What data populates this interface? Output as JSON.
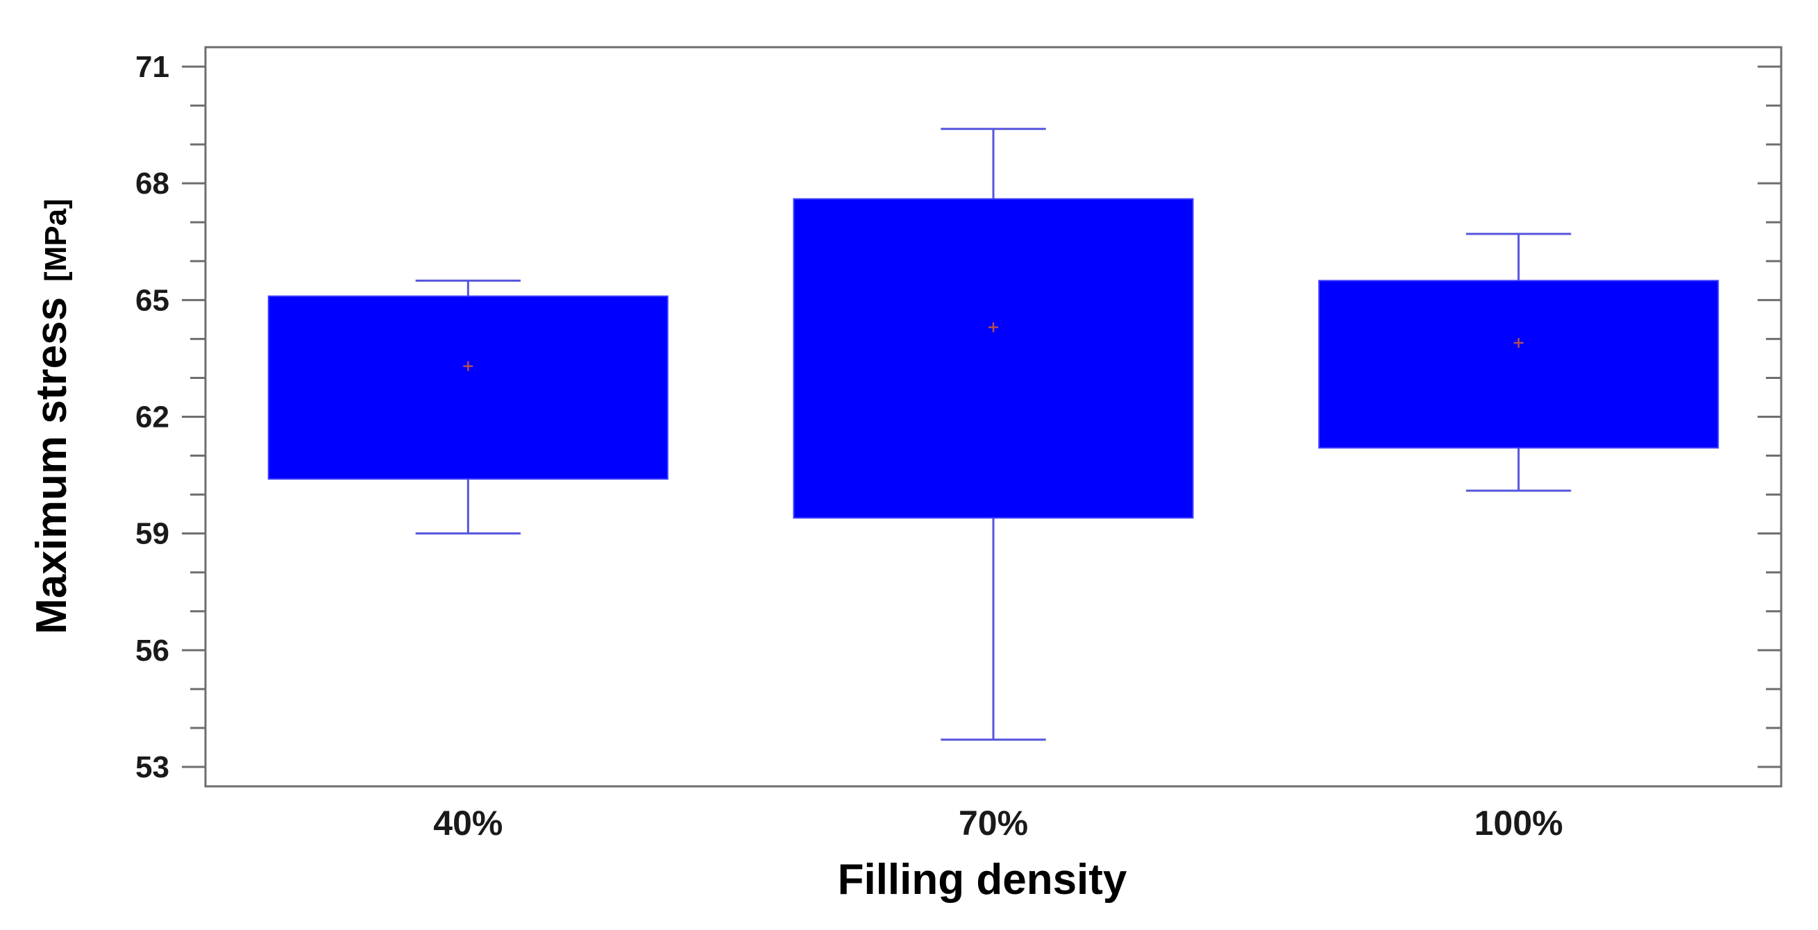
{
  "chart_data": {
    "type": "box",
    "xlabel": "Filling density",
    "ylabel": "Maximum stress",
    "ylabel_unit": "[MPa]",
    "ylim": [
      52.5,
      71.5
    ],
    "yticks": [
      53,
      56,
      59,
      62,
      65,
      68,
      71
    ],
    "yminor_step": 1,
    "categories": [
      "40%",
      "70%",
      "100%"
    ],
    "boxes": [
      {
        "category": "40%",
        "whisker_low": 59.0,
        "q1": 60.4,
        "mean": 63.3,
        "q3": 65.1,
        "whisker_high": 65.5
      },
      {
        "category": "70%",
        "whisker_low": 53.7,
        "q1": 59.4,
        "mean": 64.3,
        "q3": 67.6,
        "whisker_high": 69.4
      },
      {
        "category": "100%",
        "whisker_low": 60.1,
        "q1": 61.2,
        "mean": 63.9,
        "q3": 65.5,
        "whisker_high": 66.7
      }
    ],
    "box_color": "#0000ff",
    "whisker_color": "#5555dd",
    "mean_marker_color": "#b05050",
    "grid": false
  }
}
